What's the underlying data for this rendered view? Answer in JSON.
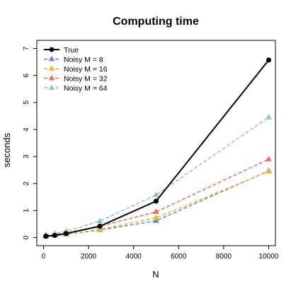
{
  "chart_data": {
    "type": "line",
    "title": "Computing time",
    "xlabel": "N",
    "ylabel": "seconds",
    "xlim": [
      -300,
      10300
    ],
    "ylim": [
      -0.3,
      7.3
    ],
    "x_ticks": [
      0,
      2000,
      4000,
      6000,
      8000,
      10000
    ],
    "y_ticks": [
      0,
      1,
      2,
      3,
      4,
      5,
      6,
      7
    ],
    "x_tick_labels": [
      "0",
      "2000",
      "4000",
      "6000",
      "8000",
      "10000"
    ],
    "y_tick_labels": [
      "0",
      "1",
      "2",
      "3",
      "4",
      "5",
      "6",
      "7"
    ],
    "grid": false,
    "legend_position": "top-left",
    "x": [
      100,
      500,
      1000,
      2500,
      5000,
      10000
    ],
    "series": [
      {
        "name": "True",
        "color": "#000000",
        "marker": "circle",
        "line": "solid",
        "values": [
          0.05,
          0.08,
          0.15,
          0.42,
          1.35,
          6.57
        ]
      },
      {
        "name": "Noisy M = 8",
        "color": "#5B8AC4",
        "marker": "triangle",
        "line": "dashed",
        "values": [
          0.05,
          0.08,
          0.12,
          0.28,
          0.62,
          2.47
        ]
      },
      {
        "name": "Noisy M = 16",
        "color": "#F4B328",
        "marker": "triangle",
        "line": "dashed",
        "values": [
          0.06,
          0.09,
          0.13,
          0.3,
          0.73,
          2.45
        ]
      },
      {
        "name": "Noisy M = 32",
        "color": "#EE6B5D",
        "marker": "triangle",
        "line": "dashed",
        "values": [
          0.07,
          0.11,
          0.17,
          0.42,
          0.95,
          2.9
        ]
      },
      {
        "name": "Noisy M = 64",
        "color": "#8EC3D0",
        "marker": "triangle",
        "line": "dashed",
        "values": [
          0.1,
          0.15,
          0.23,
          0.61,
          1.58,
          4.45
        ]
      }
    ]
  }
}
